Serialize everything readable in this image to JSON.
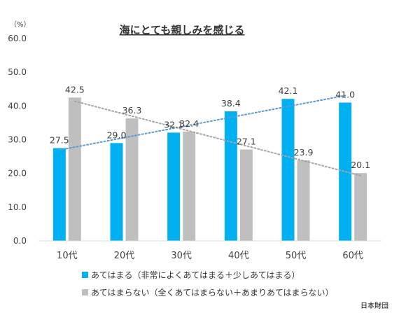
{
  "chart_data": {
    "type": "bar",
    "title": "海にとても親しみを感じる",
    "unit_label": "（%）",
    "categories": [
      "10代",
      "20代",
      "30代",
      "40代",
      "50代",
      "60代"
    ],
    "series": [
      {
        "name": "あてはまる（非常によくあてはまる＋少しあてはまる）",
        "values": [
          27.5,
          29.0,
          32.1,
          38.4,
          42.1,
          41.0
        ],
        "labels": [
          "27.5",
          "29.0",
          "32.1",
          "38.4",
          "42.1",
          "41.0"
        ],
        "color": "#00B0F0"
      },
      {
        "name": "あてはまらない（全くあてはまらない＋あまりあてはまらない）",
        "values": [
          42.5,
          36.3,
          32.4,
          27.1,
          23.9,
          20.1
        ],
        "labels": [
          "42.5",
          "36.3",
          "32.4",
          "27.1",
          "23.9",
          "20.1"
        ],
        "color": "#BFBFBF"
      }
    ],
    "ylim": [
      0,
      60
    ],
    "yticks": [
      "0.0",
      "10.0",
      "20.0",
      "30.0",
      "40.0",
      "50.0",
      "60.0"
    ],
    "trendlines": true,
    "legend_position": "bottom",
    "grid": false
  },
  "source": "日本財団"
}
